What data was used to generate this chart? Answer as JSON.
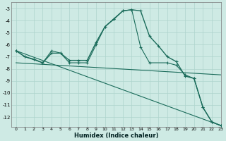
{
  "xlabel": "Humidex (Indice chaleur)",
  "xlim": [
    -0.5,
    23
  ],
  "ylim": [
    -12.8,
    -2.5
  ],
  "yticks": [
    -3,
    -4,
    -5,
    -6,
    -7,
    -8,
    -9,
    -10,
    -11,
    -12
  ],
  "xticks": [
    0,
    1,
    2,
    3,
    4,
    5,
    6,
    7,
    8,
    9,
    10,
    11,
    12,
    13,
    14,
    15,
    16,
    17,
    18,
    19,
    20,
    21,
    22,
    23
  ],
  "bg_color": "#ceeae4",
  "grid_color": "#aed4cc",
  "line_color": "#1a6b5a",
  "series": [
    {
      "x": [
        0,
        1,
        2,
        3,
        4,
        5,
        6,
        7,
        8,
        9,
        10,
        11,
        12,
        13,
        14,
        15,
        16,
        17,
        18,
        19,
        20,
        21,
        22,
        23
      ],
      "y": [
        -6.5,
        -7.0,
        -7.2,
        -7.5,
        -6.7,
        -6.7,
        -7.3,
        -7.3,
        -7.3,
        -5.8,
        -4.5,
        -3.85,
        -3.2,
        -3.1,
        -3.2,
        -5.3,
        -6.1,
        -7.0,
        -7.4,
        -8.6,
        -8.8,
        -11.2,
        -12.4,
        -12.7
      ],
      "lw": 1.0,
      "marker": "+"
    },
    {
      "x": [
        0,
        1,
        3,
        4,
        5,
        6,
        7,
        8,
        9,
        10,
        11,
        12,
        13,
        14,
        15,
        17,
        18,
        19,
        20,
        21,
        22,
        23
      ],
      "y": [
        -6.5,
        -7.0,
        -7.5,
        -6.5,
        -6.7,
        -7.5,
        -7.5,
        -7.5,
        -6.0,
        -4.5,
        -3.9,
        -3.2,
        -3.1,
        -6.2,
        -7.5,
        -7.5,
        -7.7,
        -8.5,
        -8.8,
        -11.2,
        -12.4,
        -12.7
      ],
      "lw": 0.8,
      "marker": "+"
    },
    {
      "x": [
        0,
        23
      ],
      "y": [
        -6.5,
        -12.7
      ],
      "lw": 0.8,
      "marker": null
    },
    {
      "x": [
        0,
        23
      ],
      "y": [
        -7.5,
        -8.5
      ],
      "lw": 0.8,
      "marker": null
    }
  ]
}
